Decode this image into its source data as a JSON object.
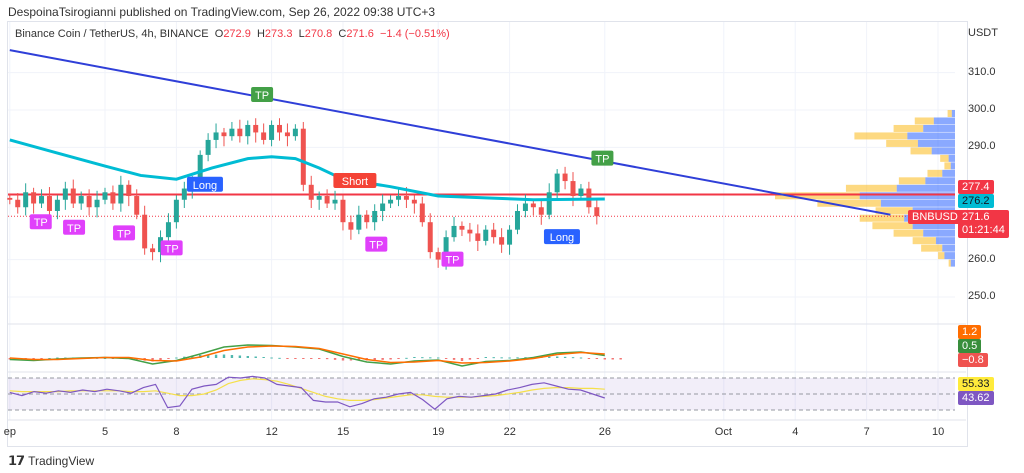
{
  "header": {
    "publisher_line": "DespoinaTsirogianni published on TradingView.com, Sep 26, 2022 09:38 UTC+3"
  },
  "legend": {
    "symbol": "Binance Coin / TetherUS, 4h, BINANCE",
    "o_label": "O",
    "o": "272.9",
    "h_label": "H",
    "h": "273.3",
    "l_label": "L",
    "l": "270.8",
    "c_label": "C",
    "c": "271.6",
    "change": "−1.4 (−0.51%)"
  },
  "footer": {
    "brand": "TradingView"
  },
  "chart_data": {
    "type": "candlestick",
    "title": "Binance Coin / TetherUS, 4h, BINANCE",
    "ylabel": "USDT",
    "ylim": [
      242,
      318
    ],
    "y_ticks": [
      "310.0",
      "300.0",
      "290.0",
      "260.0",
      "250.0"
    ],
    "y_tick_values": [
      310,
      300,
      290,
      260,
      250
    ],
    "x_ticks": [
      {
        "label": "ep",
        "day": -4
      },
      {
        "label": "5",
        "day": 0
      },
      {
        "label": "8",
        "day": 3
      },
      {
        "label": "12",
        "day": 7
      },
      {
        "label": "15",
        "day": 10
      },
      {
        "label": "19",
        "day": 14
      },
      {
        "label": "22",
        "day": 17
      },
      {
        "label": "26",
        "day": 21
      },
      {
        "label": "Oct",
        "day": 26
      },
      {
        "label": "4",
        "day": 29
      },
      {
        "label": "7",
        "day": 32
      },
      {
        "label": "10",
        "day": 35
      }
    ],
    "candle_step_days": 0.3333,
    "first_candle_day": -4,
    "closes": [
      276,
      274,
      278,
      275,
      277,
      273,
      276,
      279,
      275,
      277,
      274,
      276,
      278,
      275,
      280,
      277,
      272,
      263,
      262,
      266,
      270,
      276,
      279,
      280,
      288,
      292,
      294,
      293,
      295,
      293,
      296,
      294,
      292,
      296,
      294,
      293,
      295,
      280,
      276,
      277,
      275,
      276,
      270,
      268,
      272,
      270,
      273,
      275,
      276,
      277,
      276,
      275,
      270,
      262,
      260,
      266,
      269,
      268,
      267,
      265,
      268,
      266,
      264,
      268,
      273,
      275,
      274,
      272,
      278,
      283,
      281,
      277,
      279,
      274,
      271.6
    ],
    "ema": [
      [
        -4,
        292
      ],
      [
        -2,
        288.5
      ],
      [
        0,
        285
      ],
      [
        1.5,
        282.5
      ],
      [
        3,
        281.5
      ],
      [
        4.5,
        284.5
      ],
      [
        6,
        287
      ],
      [
        7,
        287.5
      ],
      [
        8,
        287
      ],
      [
        9,
        284.5
      ],
      [
        10,
        281.5
      ],
      [
        12,
        279.5
      ],
      [
        14,
        277
      ],
      [
        16,
        276.5
      ],
      [
        18,
        276
      ],
      [
        21,
        276.2
      ]
    ],
    "trendline": [
      [
        -4,
        316
      ],
      [
        33,
        272
      ]
    ],
    "horizontal_level": 277.4,
    "last_price": 271.6,
    "markers": [
      {
        "text": "TP",
        "day": -2.7,
        "price": 270,
        "color": "#e040fb"
      },
      {
        "text": "TP",
        "day": -1.3,
        "price": 268.5,
        "color": "#e040fb"
      },
      {
        "text": "TP",
        "day": 0.8,
        "price": 267,
        "color": "#e040fb"
      },
      {
        "text": "TP",
        "day": 2.8,
        "price": 263,
        "color": "#e040fb"
      },
      {
        "text": "Long",
        "day": 4.2,
        "price": 280,
        "color": "#2962ff"
      },
      {
        "text": "TP",
        "day": 6.6,
        "price": 304,
        "color": "#43a047"
      },
      {
        "text": "Short",
        "day": 10.5,
        "price": 281,
        "color": "#f44336"
      },
      {
        "text": "TP",
        "day": 11.4,
        "price": 264,
        "color": "#e040fb"
      },
      {
        "text": "TP",
        "day": 14.6,
        "price": 260,
        "color": "#e040fb"
      },
      {
        "text": "Long",
        "day": 19.2,
        "price": 266,
        "color": "#2962ff"
      },
      {
        "text": "TP",
        "day": 20.9,
        "price": 287,
        "color": "#43a047"
      }
    ],
    "volume_profile": [
      {
        "price": 299,
        "up": 3,
        "down": 4
      },
      {
        "price": 297,
        "up": 20,
        "down": 18
      },
      {
        "price": 295,
        "up": 30,
        "down": 28
      },
      {
        "price": 293,
        "up": 45,
        "down": 50
      },
      {
        "price": 291,
        "up": 35,
        "down": 30
      },
      {
        "price": 289,
        "up": 22,
        "down": 20
      },
      {
        "price": 287,
        "up": 6,
        "down": 8
      },
      {
        "price": 285,
        "up": 4,
        "down": 6
      },
      {
        "price": 283,
        "up": 12,
        "down": 14
      },
      {
        "price": 281,
        "up": 28,
        "down": 25
      },
      {
        "price": 279,
        "up": 55,
        "down": 48
      },
      {
        "price": 277,
        "up": 90,
        "down": 80
      },
      {
        "price": 275,
        "up": 70,
        "down": 60
      },
      {
        "price": 273,
        "up": 40,
        "down": 35
      },
      {
        "price": 271,
        "up": 48,
        "down": 42
      },
      {
        "price": 269,
        "up": 40,
        "down": 38
      },
      {
        "price": 267,
        "up": 30,
        "down": 28
      },
      {
        "price": 265,
        "up": 18,
        "down": 22
      },
      {
        "price": 263,
        "up": 12,
        "down": 20
      },
      {
        "price": 261,
        "up": 10,
        "down": 6
      },
      {
        "price": 259,
        "up": 4,
        "down": 2
      }
    ],
    "macd": {
      "macd": [
        -0.3,
        -0.5,
        -0.2,
        0,
        0.1,
        -0.1,
        -1.2,
        -0.5,
        0.8,
        2.2,
        2.6,
        2.5,
        2.2,
        1.8,
        0.3,
        -0.8,
        -1.2,
        -0.6,
        -0.4,
        -1.6,
        -0.7,
        -0.5,
        0.1,
        1.0,
        1.2,
        0.5
      ],
      "signal": [
        0,
        -0.3,
        -0.3,
        -0.1,
        0.1,
        0.1,
        -0.5,
        -0.6,
        0.2,
        1.5,
        2.2,
        2.4,
        2.3,
        1.9,
        0.8,
        -0.3,
        -0.9,
        -0.8,
        -0.5,
        -1.0,
        -0.9,
        -0.6,
        -0.1,
        0.7,
        1.1,
        0.8
      ],
      "labels": [
        "1.2",
        "0.5",
        "−0.8"
      ]
    },
    "rsi": {
      "rsi": [
        52,
        48,
        53,
        51,
        54,
        52,
        55,
        53,
        56,
        54,
        51,
        58,
        62,
        33,
        35,
        56,
        60,
        62,
        71,
        70,
        72,
        70,
        62,
        60,
        58,
        42,
        40,
        40,
        34,
        38,
        44,
        46,
        50,
        52,
        43,
        31,
        44,
        47,
        46,
        48,
        50,
        55,
        58,
        62,
        64,
        60,
        56,
        55,
        50,
        45
      ],
      "ma": [
        54,
        53,
        53,
        53,
        53,
        54,
        54,
        54,
        54,
        54,
        53,
        53,
        54,
        51,
        48,
        48,
        50,
        55,
        63,
        67,
        69,
        68,
        66,
        62,
        57,
        52,
        47,
        44,
        42,
        42,
        43,
        45,
        47,
        49,
        49,
        47,
        46,
        46,
        46,
        47,
        48,
        50,
        52,
        55,
        57,
        58,
        58,
        57,
        57,
        56
      ],
      "labels": [
        "55.33",
        "43.62"
      ]
    },
    "price_tags": {
      "level": "277.4",
      "ema": "276.2",
      "symbol": "BNBUSDT",
      "last": "271.6",
      "countdown": "01:21:44"
    }
  }
}
